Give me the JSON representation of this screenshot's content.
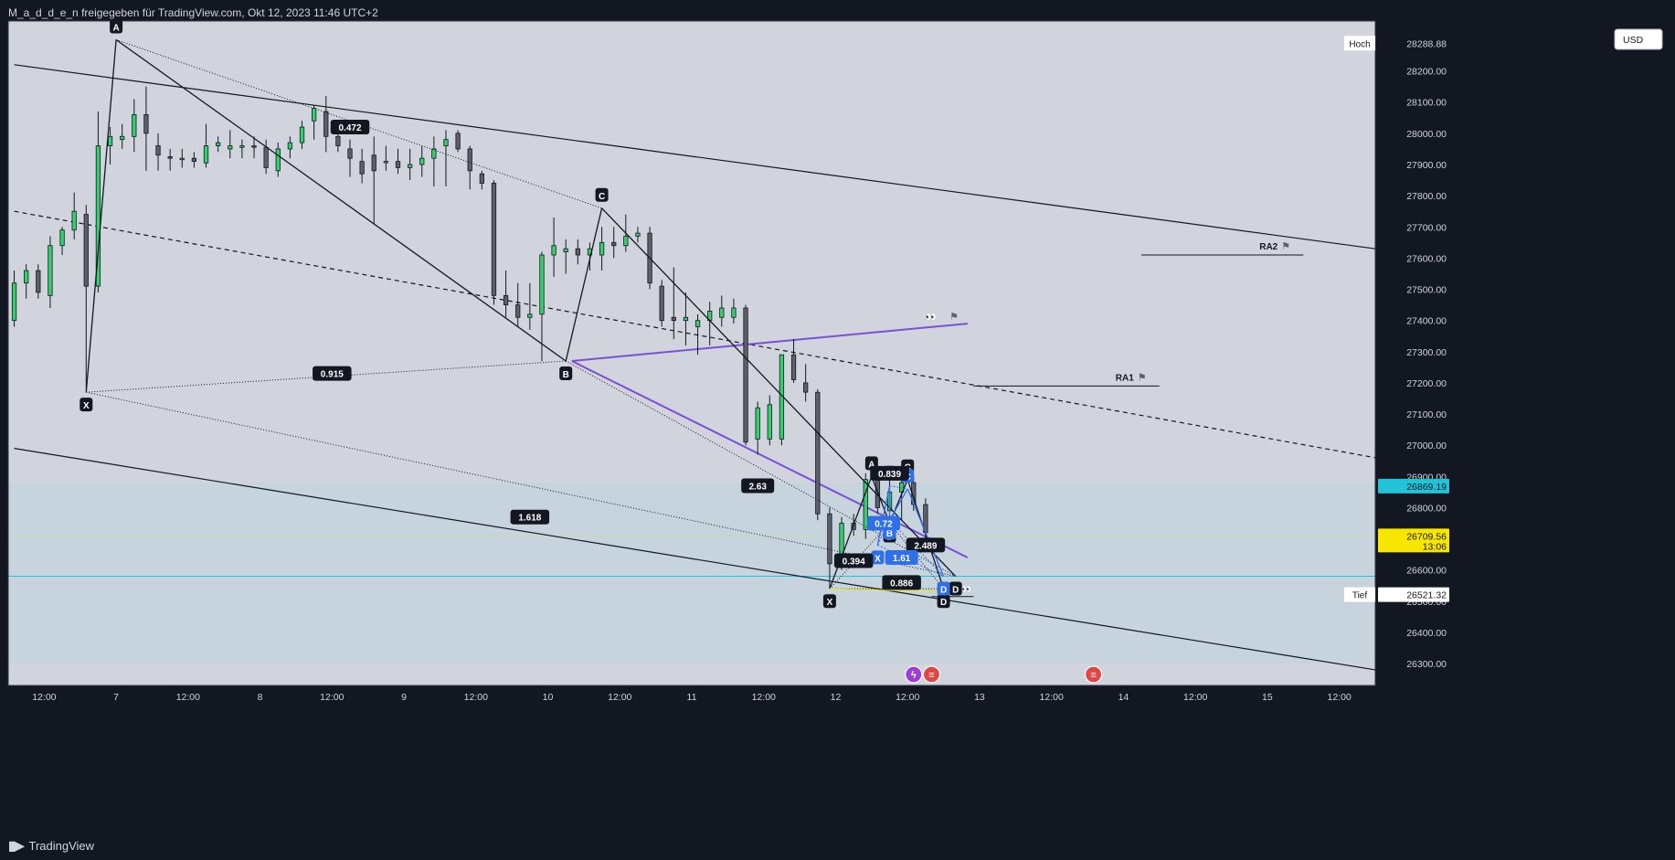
{
  "header": {
    "title": "M_a_d_d_e_n freigegeben für TradingView.com, Okt 12, 2023 11:46 UTC+2"
  },
  "footer": {
    "brand": "TradingView"
  },
  "toolbar": {
    "currency": "USD"
  },
  "colors": {
    "background": "#d1d4dc",
    "bull": "#33d16b",
    "bear": "#5d606b",
    "line": "#131722",
    "purple": "#7b4fd6",
    "blue": "#2f6fe8",
    "cyan": "#22c3d6",
    "yellow": "#f7e600"
  },
  "chart_data": {
    "type": "candlestick",
    "symbol": "",
    "ylim": [
      26230,
      28360
    ],
    "y_ticks": [
      26300,
      26400,
      26500,
      26600,
      26700,
      26800,
      26900,
      27000,
      27100,
      27200,
      27300,
      27400,
      27500,
      27600,
      27700,
      27800,
      27900,
      28000,
      28100,
      28200
    ],
    "y_tick_labels": [
      "26300.00",
      "26400.00",
      "26500.00",
      "26600.00",
      "26700.00",
      "26800.00",
      "26900.00",
      "27000.00",
      "27100.00",
      "27200.00",
      "27300.00",
      "27400.00",
      "27500.00",
      "27600.00",
      "27700.00",
      "27800.00",
      "27900.00",
      "28000.00",
      "28100.00",
      "28200.00"
    ],
    "x_ticks": [
      {
        "t": 0,
        "label": "12:00"
      },
      {
        "t": 12,
        "label": "7"
      },
      {
        "t": 24,
        "label": "12:00"
      },
      {
        "t": 36,
        "label": "8"
      },
      {
        "t": 48,
        "label": "12:00"
      },
      {
        "t": 60,
        "label": "9"
      },
      {
        "t": 72,
        "label": "12:00"
      },
      {
        "t": 84,
        "label": "10"
      },
      {
        "t": 96,
        "label": "12:00"
      },
      {
        "t": 108,
        "label": "11"
      },
      {
        "t": 120,
        "label": "12:00"
      },
      {
        "t": 132,
        "label": "12"
      },
      {
        "t": 144,
        "label": "12:00"
      },
      {
        "t": 156,
        "label": "13"
      },
      {
        "t": 168,
        "label": "12:00"
      },
      {
        "t": 180,
        "label": "14"
      },
      {
        "t": 192,
        "label": "12:00"
      },
      {
        "t": 204,
        "label": "15"
      },
      {
        "t": 216,
        "label": "12:00"
      }
    ],
    "price_labels": {
      "high": {
        "label": "Hoch",
        "value": "28288.88"
      },
      "low": {
        "label": "Tief",
        "value": "26521.32"
      },
      "cyan_level": {
        "value": "26869.19"
      },
      "last": {
        "value": "26709.56",
        "countdown": "13:06"
      }
    },
    "candles": [
      {
        "t": -5,
        "o": 27400,
        "h": 27560,
        "l": 27380,
        "c": 27520
      },
      {
        "t": -3,
        "o": 27520,
        "h": 27580,
        "l": 27470,
        "c": 27560
      },
      {
        "t": -1,
        "o": 27560,
        "h": 27580,
        "l": 27470,
        "c": 27490
      },
      {
        "t": 1,
        "o": 27480,
        "h": 27670,
        "l": 27440,
        "c": 27640
      },
      {
        "t": 3,
        "o": 27640,
        "h": 27700,
        "l": 27610,
        "c": 27690
      },
      {
        "t": 5,
        "o": 27690,
        "h": 27810,
        "l": 27660,
        "c": 27750
      },
      {
        "t": 7,
        "o": 27740,
        "h": 27770,
        "l": 27180,
        "c": 27510
      },
      {
        "t": 9,
        "o": 27510,
        "h": 28070,
        "l": 27490,
        "c": 27960
      },
      {
        "t": 11,
        "o": 27960,
        "h": 28020,
        "l": 27900,
        "c": 27990
      },
      {
        "t": 13,
        "o": 27980,
        "h": 28030,
        "l": 27950,
        "c": 27990
      },
      {
        "t": 15,
        "o": 27990,
        "h": 28110,
        "l": 27940,
        "c": 28060
      },
      {
        "t": 17,
        "o": 28060,
        "h": 28150,
        "l": 27880,
        "c": 28000
      },
      {
        "t": 19,
        "o": 27960,
        "h": 28000,
        "l": 27880,
        "c": 27930
      },
      {
        "t": 21,
        "o": 27925,
        "h": 27950,
        "l": 27880,
        "c": 27920
      },
      {
        "t": 23,
        "o": 27920,
        "h": 27950,
        "l": 27890,
        "c": 27920
      },
      {
        "t": 25,
        "o": 27920,
        "h": 27940,
        "l": 27890,
        "c": 27910
      },
      {
        "t": 27,
        "o": 27905,
        "h": 28030,
        "l": 27890,
        "c": 27960
      },
      {
        "t": 29,
        "o": 27960,
        "h": 27990,
        "l": 27940,
        "c": 27970
      },
      {
        "t": 31,
        "o": 27950,
        "h": 28010,
        "l": 27920,
        "c": 27960
      },
      {
        "t": 33,
        "o": 27955,
        "h": 27980,
        "l": 27920,
        "c": 27960
      },
      {
        "t": 35,
        "o": 27960,
        "h": 27990,
        "l": 27920,
        "c": 27955
      },
      {
        "t": 37,
        "o": 27955,
        "h": 27980,
        "l": 27870,
        "c": 27890
      },
      {
        "t": 39,
        "o": 27880,
        "h": 27970,
        "l": 27860,
        "c": 27950
      },
      {
        "t": 41,
        "o": 27950,
        "h": 27990,
        "l": 27920,
        "c": 27970
      },
      {
        "t": 43,
        "o": 27970,
        "h": 28040,
        "l": 27950,
        "c": 28020
      },
      {
        "t": 45,
        "o": 28040,
        "h": 28090,
        "l": 27980,
        "c": 28080
      },
      {
        "t": 47,
        "o": 28070,
        "h": 28120,
        "l": 27940,
        "c": 27990
      },
      {
        "t": 49,
        "o": 27990,
        "h": 28020,
        "l": 27940,
        "c": 27960
      },
      {
        "t": 51,
        "o": 27950,
        "h": 27980,
        "l": 27860,
        "c": 27920
      },
      {
        "t": 53,
        "o": 27910,
        "h": 27950,
        "l": 27840,
        "c": 27870
      },
      {
        "t": 55,
        "o": 27930,
        "h": 27990,
        "l": 27710,
        "c": 27880
      },
      {
        "t": 57,
        "o": 27910,
        "h": 27960,
        "l": 27880,
        "c": 27910
      },
      {
        "t": 59,
        "o": 27910,
        "h": 27950,
        "l": 27870,
        "c": 27890
      },
      {
        "t": 61,
        "o": 27890,
        "h": 27950,
        "l": 27850,
        "c": 27900
      },
      {
        "t": 63,
        "o": 27900,
        "h": 27960,
        "l": 27860,
        "c": 27920
      },
      {
        "t": 65,
        "o": 27920,
        "h": 27990,
        "l": 27830,
        "c": 27950
      },
      {
        "t": 67,
        "o": 27960,
        "h": 28010,
        "l": 27830,
        "c": 27980
      },
      {
        "t": 69,
        "o": 28000,
        "h": 28010,
        "l": 27940,
        "c": 27950
      },
      {
        "t": 71,
        "o": 27950,
        "h": 27960,
        "l": 27820,
        "c": 27880
      },
      {
        "t": 73,
        "o": 27870,
        "h": 27880,
        "l": 27820,
        "c": 27840
      },
      {
        "t": 75,
        "o": 27840,
        "h": 27850,
        "l": 27450,
        "c": 27480
      },
      {
        "t": 77,
        "o": 27480,
        "h": 27560,
        "l": 27410,
        "c": 27450
      },
      {
        "t": 79,
        "o": 27450,
        "h": 27520,
        "l": 27380,
        "c": 27410
      },
      {
        "t": 81,
        "o": 27410,
        "h": 27520,
        "l": 27370,
        "c": 27420
      },
      {
        "t": 83,
        "o": 27420,
        "h": 27620,
        "l": 27270,
        "c": 27610
      },
      {
        "t": 85,
        "o": 27610,
        "h": 27730,
        "l": 27540,
        "c": 27640
      },
      {
        "t": 87,
        "o": 27620,
        "h": 27660,
        "l": 27550,
        "c": 27630
      },
      {
        "t": 89,
        "o": 27630,
        "h": 27660,
        "l": 27580,
        "c": 27610
      },
      {
        "t": 91,
        "o": 27610,
        "h": 27650,
        "l": 27560,
        "c": 27630
      },
      {
        "t": 93,
        "o": 27610,
        "h": 27700,
        "l": 27560,
        "c": 27650
      },
      {
        "t": 95,
        "o": 27650,
        "h": 27700,
        "l": 27600,
        "c": 27640
      },
      {
        "t": 97,
        "o": 27640,
        "h": 27740,
        "l": 27620,
        "c": 27670
      },
      {
        "t": 99,
        "o": 27670,
        "h": 27700,
        "l": 27650,
        "c": 27680
      },
      {
        "t": 101,
        "o": 27680,
        "h": 27700,
        "l": 27500,
        "c": 27520
      },
      {
        "t": 103,
        "o": 27510,
        "h": 27530,
        "l": 27380,
        "c": 27400
      },
      {
        "t": 105,
        "o": 27410,
        "h": 27570,
        "l": 27340,
        "c": 27400
      },
      {
        "t": 107,
        "o": 27400,
        "h": 27490,
        "l": 27320,
        "c": 27410
      },
      {
        "t": 109,
        "o": 27380,
        "h": 27420,
        "l": 27290,
        "c": 27400
      },
      {
        "t": 111,
        "o": 27400,
        "h": 27460,
        "l": 27320,
        "c": 27430
      },
      {
        "t": 113,
        "o": 27410,
        "h": 27480,
        "l": 27380,
        "c": 27440
      },
      {
        "t": 115,
        "o": 27410,
        "h": 27470,
        "l": 27390,
        "c": 27440
      },
      {
        "t": 117,
        "o": 27440,
        "h": 27450,
        "l": 27000,
        "c": 27010
      },
      {
        "t": 119,
        "o": 27020,
        "h": 27140,
        "l": 26970,
        "c": 27120
      },
      {
        "t": 121,
        "o": 27020,
        "h": 27160,
        "l": 27000,
        "c": 27130
      },
      {
        "t": 123,
        "o": 27020,
        "h": 27290,
        "l": 27000,
        "c": 27290
      },
      {
        "t": 125,
        "o": 27290,
        "h": 27340,
        "l": 27200,
        "c": 27210
      },
      {
        "t": 127,
        "o": 27200,
        "h": 27260,
        "l": 27140,
        "c": 27170
      },
      {
        "t": 129,
        "o": 27170,
        "h": 27180,
        "l": 26760,
        "c": 26780
      },
      {
        "t": 131,
        "o": 26780,
        "h": 26800,
        "l": 26540,
        "c": 26620
      },
      {
        "t": 133,
        "o": 26620,
        "h": 26770,
        "l": 26600,
        "c": 26750
      },
      {
        "t": 135,
        "o": 26750,
        "h": 26780,
        "l": 26710,
        "c": 26730
      },
      {
        "t": 137,
        "o": 26730,
        "h": 26910,
        "l": 26700,
        "c": 26890
      },
      {
        "t": 139,
        "o": 26890,
        "h": 26890,
        "l": 26780,
        "c": 26800
      },
      {
        "t": 141,
        "o": 26790,
        "h": 26920,
        "l": 26780,
        "c": 26850
      },
      {
        "t": 143,
        "o": 26850,
        "h": 26890,
        "l": 26760,
        "c": 26880
      },
      {
        "t": 145,
        "o": 26880,
        "h": 26900,
        "l": 26790,
        "c": 26810
      },
      {
        "t": 147,
        "o": 26810,
        "h": 26830,
        "l": 26700,
        "c": 26720
      }
    ],
    "levels": [
      {
        "name": "RA2",
        "price": 27610,
        "t0": 183,
        "t1": 210
      },
      {
        "name": "RA1",
        "price": 27190,
        "t0": 155,
        "t1": 186
      }
    ],
    "zone": {
      "from": 26300,
      "to": 26880
    },
    "trendlines": [
      {
        "kind": "channel-upper",
        "p1": [
          -5,
          28220
        ],
        "p2": [
          222,
          27630
        ]
      },
      {
        "kind": "channel-mid",
        "p1": [
          -5,
          27750
        ],
        "p2": [
          222,
          26960
        ],
        "dashed": true
      },
      {
        "kind": "channel-lower",
        "p1": [
          -5,
          26990
        ],
        "p2": [
          222,
          26280
        ]
      },
      {
        "kind": "purple-upper",
        "p1": [
          88,
          27270
        ],
        "p2": [
          154,
          27390
        ]
      },
      {
        "kind": "purple-lower",
        "p1": [
          88,
          27270
        ],
        "p2": [
          154,
          26640
        ]
      }
    ],
    "harmonic_big": {
      "points": {
        "X": [
          7,
          27170
        ],
        "A": [
          12,
          28300
        ],
        "B": [
          87,
          27270
        ],
        "C": [
          93,
          27760
        ],
        "D": [
          152,
          26580
        ]
      },
      "ratios": [
        {
          "label": "0.472",
          "t": 51,
          "price": 28020
        },
        {
          "label": "0.915",
          "t": 48,
          "price": 27230
        },
        {
          "label": "2.63",
          "t": 119,
          "price": 26870
        },
        {
          "label": "1.618",
          "t": 81,
          "price": 26770
        }
      ]
    },
    "harmonic_small": {
      "points": {
        "X": [
          131,
          26540
        ],
        "A": [
          138,
          26900
        ],
        "B": [
          141,
          26750
        ],
        "C": [
          144,
          26890
        ],
        "D": [
          150,
          26540
        ]
      },
      "ratios": [
        {
          "label": "0.839",
          "t": 141,
          "price": 26910
        },
        {
          "label": "0.394",
          "t": 135,
          "price": 26630
        },
        {
          "label": "0.886",
          "t": 143,
          "price": 26560
        },
        {
          "label": "2.489",
          "t": 147,
          "price": 26680
        }
      ]
    },
    "blue_pattern": {
      "points": {
        "X": [
          139,
          26680
        ],
        "A": [
          141,
          26870
        ],
        "B": [
          141,
          26760
        ],
        "C": [
          144,
          26860
        ],
        "D": [
          150,
          26580
        ]
      },
      "ratios": [
        {
          "label": "0.72",
          "t": 140,
          "price": 26750
        },
        {
          "label": "1.61",
          "t": 143,
          "price": 26640
        }
      ]
    },
    "bottom_markers": [
      {
        "kind": "lightning-icon",
        "t": 145
      },
      {
        "kind": "us-flag-icon",
        "t": 148
      },
      {
        "kind": "us-flag-icon",
        "t": 175
      }
    ]
  }
}
